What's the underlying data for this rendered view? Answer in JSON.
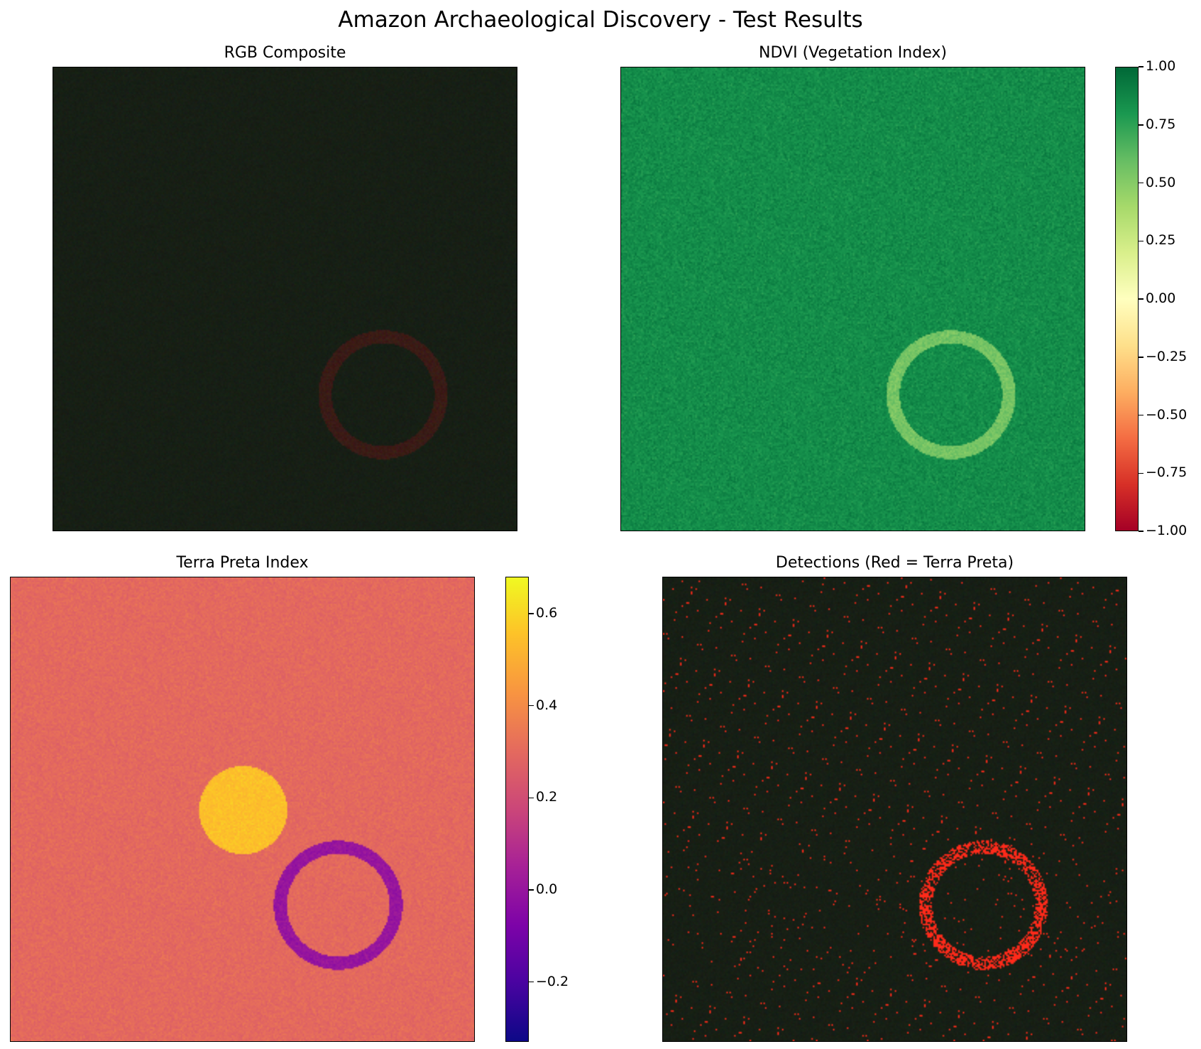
{
  "figure": {
    "title": "Amazon Archaeological Discovery - Test Results"
  },
  "chart_data": [
    {
      "type": "heatmap",
      "title": "RGB Composite",
      "xlabel": "",
      "ylabel": "",
      "axes_visible": false,
      "background_color": "#171f15",
      "features": [
        {
          "shape": "ring",
          "center": [
            0.71,
            0.705
          ],
          "radius": 0.125,
          "color": "#3a1b16"
        }
      ]
    },
    {
      "type": "heatmap",
      "title": "NDVI (Vegetation Index)",
      "xlabel": "",
      "ylabel": "",
      "axes_visible": false,
      "colormap": "RdYlGn",
      "colorbar": {
        "min": -1.0,
        "max": 1.0,
        "ticks": [
          "1.00",
          "0.75",
          "0.50",
          "0.25",
          "0.00",
          "−0.25",
          "−0.50",
          "−0.75",
          "−1.00"
        ]
      },
      "background_value": 0.85,
      "features": [
        {
          "shape": "ring",
          "center": [
            0.71,
            0.705
          ],
          "radius": 0.125,
          "value": 0.55
        }
      ]
    },
    {
      "type": "heatmap",
      "title": "Terra Preta Index",
      "xlabel": "",
      "ylabel": "",
      "axes_visible": false,
      "colormap": "plasma",
      "colorbar": {
        "min": -0.33,
        "max": 0.68,
        "ticks": [
          "0.6",
          "0.4",
          "0.2",
          "0.0",
          "−0.2"
        ]
      },
      "background_value": 0.3,
      "features": [
        {
          "shape": "disk",
          "center": [
            0.5,
            0.5
          ],
          "radius": 0.095,
          "value": 0.55
        },
        {
          "shape": "ring",
          "center": [
            0.705,
            0.705
          ],
          "radius": 0.125,
          "value": 0.0
        }
      ]
    },
    {
      "type": "heatmap",
      "title": "Detections (Red = Terra Preta)",
      "xlabel": "",
      "ylabel": "",
      "axes_visible": false,
      "background_color": "#171f15",
      "detection_color": "#ff2a1a",
      "features": [
        {
          "shape": "ring",
          "center": [
            0.69,
            0.705
          ],
          "radius": 0.125,
          "color": "#ff2a1a"
        },
        {
          "shape": "scatter_noise",
          "density": 0.012,
          "color": "#ff2a1a"
        }
      ]
    }
  ]
}
